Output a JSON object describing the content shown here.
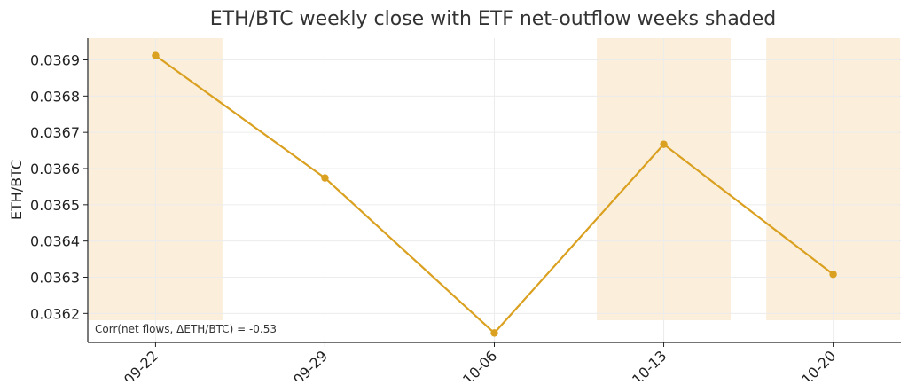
{
  "chart_data": {
    "type": "line",
    "title": "ETH/BTC weekly close with ETF net-outflow weeks shaded",
    "xlabel": "",
    "ylabel": "ETH/BTC",
    "categories": [
      "09-22",
      "09-29",
      "10-06",
      "10-13",
      "10-20"
    ],
    "series": [
      {
        "values": [
          0.036912,
          0.036574,
          0.036146,
          0.036667,
          0.036308
        ]
      }
    ],
    "shaded_categories": [
      "09-22",
      "10-13",
      "10-20"
    ],
    "yticks": [
      0.0362,
      0.0363,
      0.0364,
      0.0365,
      0.0366,
      0.0367,
      0.0368,
      0.0369
    ],
    "ytick_labels": [
      "0.0362",
      "0.0363",
      "0.0364",
      "0.0365",
      "0.0366",
      "0.0367",
      "0.0368",
      "0.0369"
    ],
    "ylim": [
      0.03612,
      0.03696
    ],
    "annotation": "Corr(net flows, ΔETH/BTC) = -0.53",
    "grid": true,
    "colors": {
      "line": "#daa020",
      "shade": "#fbeedb",
      "grid": "#ececec",
      "axis": "#222222"
    }
  }
}
